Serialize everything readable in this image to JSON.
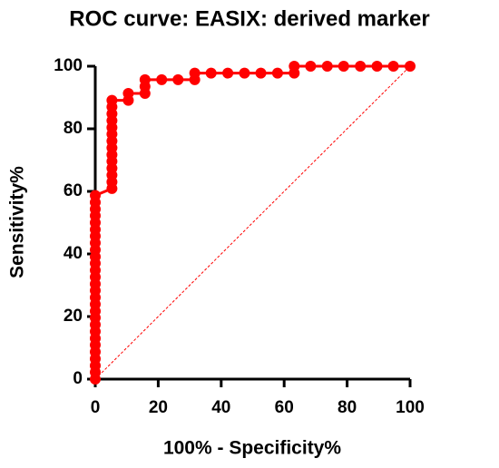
{
  "chart_data": {
    "type": "line",
    "title": "ROC curve: EASIX: derived marker",
    "x_label": "100% - Specificity%",
    "y_label": "Sensitivity%",
    "color": "#ff0000",
    "grid": false,
    "xlim": [
      0,
      100
    ],
    "ylim": [
      0,
      100
    ],
    "xticks": [
      0,
      20,
      40,
      60,
      80,
      100
    ],
    "yticks": [
      0,
      20,
      40,
      60,
      80,
      100
    ],
    "x": [
      0,
      0,
      0,
      0,
      0,
      0,
      0,
      0,
      0,
      0,
      0,
      0,
      0,
      0,
      0,
      0,
      0,
      0,
      0,
      0,
      0,
      0,
      0,
      0,
      0,
      0,
      0,
      0,
      5.3,
      5.3,
      5.3,
      5.3,
      5.3,
      5.3,
      5.3,
      5.3,
      5.3,
      5.3,
      5.3,
      5.3,
      5.3,
      5.3,
      10.5,
      10.5,
      15.8,
      15.8,
      15.8,
      21.1,
      26.3,
      31.6,
      31.6,
      36.8,
      42.1,
      47.4,
      52.6,
      57.9,
      63.2,
      63.2,
      68.4,
      73.7,
      78.9,
      84.2,
      89.5,
      94.7,
      100
    ],
    "y": [
      0,
      2.2,
      4.3,
      6.5,
      8.7,
      10.9,
      13,
      15.2,
      17.4,
      19.6,
      21.7,
      23.9,
      26.1,
      28.3,
      30.4,
      32.6,
      34.8,
      37,
      39.1,
      41.3,
      43.5,
      45.7,
      47.8,
      50,
      52.2,
      54.3,
      56.5,
      58.7,
      60.9,
      63,
      65.2,
      67.4,
      69.6,
      71.7,
      73.9,
      76.1,
      78.3,
      80.4,
      82.6,
      84.8,
      87,
      89.1,
      89.1,
      91.3,
      91.3,
      93.5,
      95.7,
      95.7,
      95.7,
      95.7,
      97.8,
      97.8,
      97.8,
      97.8,
      97.8,
      97.8,
      97.8,
      100,
      100,
      100,
      100,
      100,
      100,
      100,
      100
    ]
  }
}
